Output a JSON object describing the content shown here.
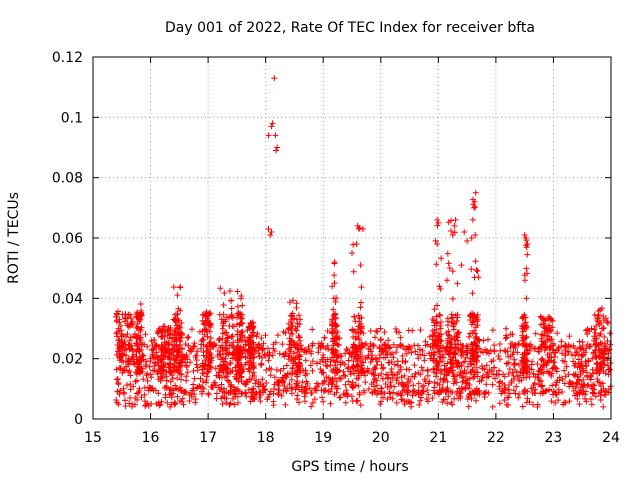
{
  "chart_data": {
    "type": "scatter",
    "title": "Day 001 of 2022, Rate Of TEC Index for receiver bfta",
    "xlabel": "GPS time / hours",
    "ylabel": "ROTI / TECUs",
    "xlim": [
      15,
      24
    ],
    "ylim": [
      0,
      0.12
    ],
    "x_ticks": [
      "15",
      "16",
      "17",
      "18",
      "19",
      "20",
      "21",
      "22",
      "23",
      "24"
    ],
    "y_ticks": [
      "0",
      "0.02",
      "0.04",
      "0.06",
      "0.08",
      "0.1",
      "0.12"
    ],
    "grid": true,
    "marker": "plus",
    "series_color": "#ff0000",
    "baseline": {
      "x_start": 15.4,
      "x_end": 24.0,
      "typical_low": 0.008,
      "typical_high": 0.025,
      "note": "dense band of samples between roughly 0.005 and 0.03 across the full time range"
    },
    "segments": [
      {
        "x_range": [
          15.4,
          15.7
        ],
        "peak": 0.036
      },
      {
        "x_range": [
          15.75,
          15.85
        ],
        "peak": 0.039
      },
      {
        "x_range": [
          16.1,
          16.35
        ],
        "peak": 0.031
      },
      {
        "x_range": [
          16.4,
          16.55
        ],
        "peak": 0.044
      },
      {
        "x_range": [
          16.9,
          17.05
        ],
        "peak": 0.037
      },
      {
        "x_range": [
          17.2,
          17.45
        ],
        "peak": 0.045
      },
      {
        "x_range": [
          17.5,
          17.6
        ],
        "peak": 0.044
      },
      {
        "x_range": [
          17.7,
          17.8
        ],
        "peak": 0.032
      },
      {
        "x_range": [
          18.4,
          18.6
        ],
        "peak": 0.041
      },
      {
        "x_range": [
          19.15,
          19.25
        ],
        "peak": 0.052
      },
      {
        "x_range": [
          19.5,
          19.7
        ],
        "peak": 0.064
      },
      {
        "x_range": [
          20.9,
          21.05
        ],
        "peak": 0.066
      },
      {
        "x_range": [
          21.15,
          21.35
        ],
        "peak": 0.066
      },
      {
        "x_range": [
          21.55,
          21.7
        ],
        "peak": 0.075
      },
      {
        "x_range": [
          22.45,
          22.55
        ],
        "peak": 0.061
      },
      {
        "x_range": [
          22.75,
          23.0
        ],
        "peak": 0.034
      },
      {
        "x_range": [
          23.7,
          23.95
        ],
        "peak": 0.037
      }
    ],
    "outliers": [
      {
        "x": 18.15,
        "y": 0.113
      },
      {
        "x": 18.12,
        "y": 0.098
      },
      {
        "x": 18.1,
        "y": 0.097
      },
      {
        "x": 18.17,
        "y": 0.094
      },
      {
        "x": 18.05,
        "y": 0.094
      },
      {
        "x": 18.2,
        "y": 0.09
      },
      {
        "x": 18.18,
        "y": 0.089
      },
      {
        "x": 18.05,
        "y": 0.063
      },
      {
        "x": 18.1,
        "y": 0.062
      },
      {
        "x": 18.08,
        "y": 0.061
      },
      {
        "x": 19.6,
        "y": 0.064
      },
      {
        "x": 19.62,
        "y": 0.063
      },
      {
        "x": 19.58,
        "y": 0.058
      },
      {
        "x": 19.5,
        "y": 0.055
      },
      {
        "x": 19.65,
        "y": 0.051
      },
      {
        "x": 19.2,
        "y": 0.052
      },
      {
        "x": 20.98,
        "y": 0.066
      },
      {
        "x": 21.0,
        "y": 0.065
      },
      {
        "x": 20.98,
        "y": 0.058
      },
      {
        "x": 21.3,
        "y": 0.066
      },
      {
        "x": 21.28,
        "y": 0.064
      },
      {
        "x": 21.25,
        "y": 0.061
      },
      {
        "x": 21.45,
        "y": 0.062
      },
      {
        "x": 21.5,
        "y": 0.059
      },
      {
        "x": 21.65,
        "y": 0.075
      },
      {
        "x": 21.63,
        "y": 0.072
      },
      {
        "x": 21.62,
        "y": 0.07
      },
      {
        "x": 21.6,
        "y": 0.066
      },
      {
        "x": 21.64,
        "y": 0.061
      },
      {
        "x": 21.58,
        "y": 0.06
      },
      {
        "x": 21.68,
        "y": 0.049
      },
      {
        "x": 21.7,
        "y": 0.047
      },
      {
        "x": 21.25,
        "y": 0.049
      },
      {
        "x": 21.2,
        "y": 0.05
      },
      {
        "x": 21.4,
        "y": 0.051
      },
      {
        "x": 21.15,
        "y": 0.046
      },
      {
        "x": 22.5,
        "y": 0.061
      },
      {
        "x": 22.52,
        "y": 0.06
      },
      {
        "x": 22.55,
        "y": 0.058
      },
      {
        "x": 22.53,
        "y": 0.04
      }
    ]
  }
}
